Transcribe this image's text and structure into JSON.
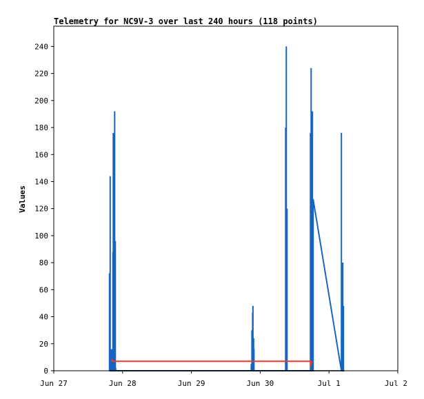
{
  "chart_data": {
    "type": "line",
    "title": "Telemetry for NC9V-3 over last 240 hours (118 points)",
    "ylabel": "Values",
    "xlabel": "",
    "x_ticks": [
      "Jun 27",
      "Jun 28",
      "Jun 29",
      "Jun 30",
      "Jul 1",
      "Jul 2"
    ],
    "y_ticks": [
      0,
      20,
      40,
      60,
      80,
      100,
      120,
      140,
      160,
      180,
      200,
      220,
      240
    ],
    "xlim": [
      0,
      5
    ],
    "ylim": [
      0,
      255
    ],
    "legend": "none",
    "grid": false,
    "colors": {
      "series_main": "#1565c0",
      "series_secondary": "#e53935",
      "series_baseline": "#000000"
    },
    "series": [
      {
        "color": "#1565c0",
        "points": [
          [
            0.81,
            0
          ],
          [
            0.81,
            72
          ],
          [
            0.81,
            0
          ],
          [
            0.82,
            0
          ],
          [
            0.82,
            144
          ],
          [
            0.82,
            0
          ],
          [
            0.84,
            0
          ],
          [
            0.84,
            16
          ],
          [
            0.84,
            0
          ],
          [
            0.86,
            0
          ],
          [
            0.86,
            88
          ],
          [
            0.86,
            0
          ],
          [
            0.865,
            0
          ],
          [
            0.865,
            176
          ],
          [
            0.865,
            0
          ],
          [
            0.875,
            0
          ],
          [
            0.875,
            147
          ],
          [
            0.875,
            0
          ],
          [
            0.88,
            0
          ],
          [
            0.88,
            30
          ],
          [
            0.88,
            0
          ],
          [
            0.885,
            0
          ],
          [
            0.885,
            192
          ],
          [
            0.885,
            0
          ],
          [
            0.895,
            0
          ],
          [
            0.895,
            96
          ],
          [
            0.895,
            0
          ],
          [
            0.9,
            0
          ],
          [
            0.9,
            2
          ],
          [
            0.9,
            0
          ],
          [
            2.87,
            0
          ],
          [
            2.87,
            5
          ],
          [
            2.87,
            0
          ],
          [
            2.88,
            0
          ],
          [
            2.88,
            30
          ],
          [
            2.88,
            0
          ],
          [
            2.89,
            0
          ],
          [
            2.89,
            43
          ],
          [
            2.89,
            0
          ],
          [
            2.895,
            0
          ],
          [
            2.895,
            48
          ],
          [
            2.895,
            0
          ],
          [
            2.905,
            0
          ],
          [
            2.905,
            24
          ],
          [
            2.905,
            0
          ],
          [
            2.91,
            0
          ],
          [
            2.91,
            16
          ],
          [
            2.91,
            0
          ],
          [
            2.92,
            0
          ],
          [
            3.37,
            0
          ],
          [
            3.37,
            180
          ],
          [
            3.37,
            0
          ],
          [
            3.38,
            0
          ],
          [
            3.38,
            240
          ],
          [
            3.38,
            0
          ],
          [
            3.39,
            0
          ],
          [
            3.39,
            120
          ],
          [
            3.39,
            0
          ],
          [
            3.4,
            0
          ],
          [
            3.73,
            0
          ],
          [
            3.73,
            176
          ],
          [
            3.73,
            0
          ],
          [
            3.74,
            0
          ],
          [
            3.74,
            224
          ],
          [
            3.74,
            0
          ],
          [
            3.75,
            0
          ],
          [
            3.75,
            88
          ],
          [
            3.75,
            0
          ],
          [
            3.76,
            0
          ],
          [
            3.76,
            192
          ],
          [
            3.76,
            0
          ],
          [
            3.77,
            0
          ],
          [
            3.77,
            127
          ],
          [
            4.18,
            0
          ],
          [
            4.18,
            176
          ],
          [
            4.18,
            0
          ],
          [
            4.19,
            0
          ],
          [
            4.19,
            60
          ],
          [
            4.19,
            0
          ],
          [
            4.2,
            0
          ],
          [
            4.2,
            80
          ],
          [
            4.2,
            0
          ],
          [
            4.21,
            0
          ],
          [
            4.21,
            48
          ],
          [
            4.21,
            0
          ]
        ]
      },
      {
        "color": "#e53935",
        "points": [
          [
            0.84,
            7
          ],
          [
            0.85,
            8
          ],
          [
            0.86,
            7
          ],
          [
            3.38,
            7
          ],
          [
            3.73,
            7
          ],
          [
            3.73,
            3
          ],
          [
            3.75,
            7
          ]
        ]
      },
      {
        "color": "#000000",
        "points": [
          [
            0.81,
            0
          ],
          [
            4.22,
            0
          ]
        ]
      }
    ]
  }
}
